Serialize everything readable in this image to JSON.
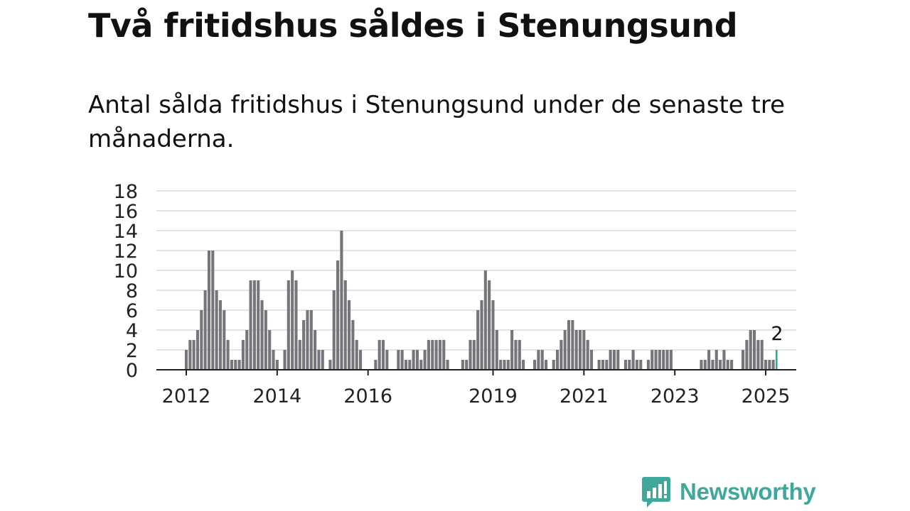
{
  "header": {
    "title": "Två fritidshus såldes i Stenungsund",
    "subtitle": "Antal sålda fritidshus i Stenungsund under de senaste tre månaderna."
  },
  "brand": {
    "name": "Newsworthy",
    "color": "#3fa89b"
  },
  "chart_data": {
    "type": "bar",
    "title": "Två fritidshus såldes i Stenungsund",
    "subtitle": "Antal sålda fritidshus i Stenungsund under de senaste tre månaderna.",
    "ylim": [
      0,
      18
    ],
    "yticks": [
      0,
      2,
      4,
      6,
      8,
      10,
      12,
      14,
      16,
      18
    ],
    "xticks": [
      "2012",
      "2014",
      "2016",
      "2019",
      "2021",
      "2023",
      "2025"
    ],
    "grid": true,
    "bar_color": "#76757b",
    "highlight_color": "#2fa89c",
    "annotation": {
      "label": "2",
      "target": "last"
    },
    "series": [
      {
        "values": [
          2,
          3,
          3,
          4,
          6,
          8,
          12,
          12,
          8,
          7,
          6,
          3,
          1,
          1,
          1,
          3,
          4,
          9,
          9,
          9,
          7,
          6,
          4,
          2,
          1,
          0,
          2,
          9,
          10,
          9,
          3,
          5,
          6,
          6,
          4,
          2,
          2,
          0,
          1,
          8,
          11,
          14,
          9,
          7,
          5,
          3,
          2,
          0,
          0,
          0,
          1,
          3,
          3,
          2,
          0,
          0,
          2,
          2,
          1,
          1,
          2,
          2,
          1,
          2,
          3,
          3,
          3,
          3,
          3,
          1,
          0,
          0,
          0,
          1,
          1,
          3,
          3,
          6,
          7,
          10,
          9,
          7,
          4,
          1,
          1,
          1,
          4,
          3,
          3,
          1,
          0,
          0,
          1,
          2,
          2,
          1,
          0,
          1,
          2,
          3,
          4,
          5,
          5,
          4,
          4,
          4,
          3,
          2,
          0,
          1,
          1,
          1,
          2,
          2,
          2,
          0,
          1,
          1,
          2,
          1,
          1,
          0,
          1,
          2,
          2,
          2,
          2,
          2,
          2,
          0,
          0,
          0,
          0,
          0,
          0,
          0,
          1,
          1,
          2,
          1,
          2,
          1,
          2,
          1,
          1,
          0,
          0,
          2,
          3,
          4,
          4,
          3,
          3,
          1,
          1,
          1,
          2
        ]
      }
    ]
  }
}
